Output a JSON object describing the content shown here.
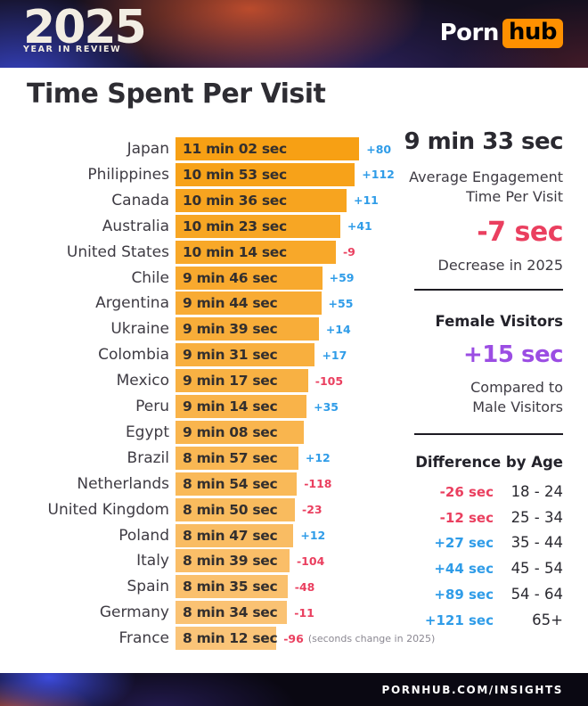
{
  "header": {
    "year": "2025",
    "tagline": "YEAR IN REVIEW",
    "brand_left": "Porn",
    "brand_right": "hub"
  },
  "page_title": "Time Spent Per Visit",
  "chart_data": {
    "type": "bar",
    "title": "Time Spent Per Visit",
    "orientation": "horizontal",
    "x_axis_visible": false,
    "bar_scale_seconds_range": [
      285,
      680
    ],
    "rows": [
      {
        "country": "Japan",
        "time": "11 min 02 sec",
        "seconds": 662,
        "change": "+80"
      },
      {
        "country": "Philippines",
        "time": "10 min 53 sec",
        "seconds": 653,
        "change": "+112"
      },
      {
        "country": "Canada",
        "time": "10 min 36 sec",
        "seconds": 636,
        "change": "+11"
      },
      {
        "country": "Australia",
        "time": "10 min 23 sec",
        "seconds": 623,
        "change": "+41"
      },
      {
        "country": "United States",
        "time": "10 min 14 sec",
        "seconds": 614,
        "change": "-9"
      },
      {
        "country": "Chile",
        "time": "9 min 46 sec",
        "seconds": 586,
        "change": "+59"
      },
      {
        "country": "Argentina",
        "time": "9 min 44 sec",
        "seconds": 584,
        "change": "+55"
      },
      {
        "country": "Ukraine",
        "time": "9 min 39 sec",
        "seconds": 579,
        "change": "+14"
      },
      {
        "country": "Colombia",
        "time": "9 min 31 sec",
        "seconds": 571,
        "change": "+17"
      },
      {
        "country": "Mexico",
        "time": "9 min 17 sec",
        "seconds": 557,
        "change": "-105"
      },
      {
        "country": "Peru",
        "time": "9 min 14 sec",
        "seconds": 554,
        "change": "+35"
      },
      {
        "country": "Egypt",
        "time": "9 min 08 sec",
        "seconds": 548,
        "change": ""
      },
      {
        "country": "Brazil",
        "time": "8 min 57 sec",
        "seconds": 537,
        "change": "+12"
      },
      {
        "country": "Netherlands",
        "time": "8 min 54 sec",
        "seconds": 534,
        "change": "-118"
      },
      {
        "country": "United Kingdom",
        "time": "8 min 50 sec",
        "seconds": 530,
        "change": "-23"
      },
      {
        "country": "Poland",
        "time": "8 min 47 sec",
        "seconds": 527,
        "change": "+12"
      },
      {
        "country": "Italy",
        "time": "8 min 39 sec",
        "seconds": 519,
        "change": "-104"
      },
      {
        "country": "Spain",
        "time": "8 min 35 sec",
        "seconds": 515,
        "change": "-48"
      },
      {
        "country": "Germany",
        "time": "8 min 34 sec",
        "seconds": 514,
        "change": "-11"
      },
      {
        "country": "France",
        "time": "8 min 12 sec",
        "seconds": 492,
        "change": "-96",
        "note": "(seconds change in 2025)"
      }
    ]
  },
  "sidebar": {
    "average": {
      "value": "9 min 33 sec",
      "label_line1": "Average Engagement",
      "label_line2": "Time Per Visit",
      "delta": "-7 sec",
      "delta_label": "Decrease in 2025"
    },
    "female": {
      "title": "Female Visitors",
      "delta": "+15 sec",
      "label_line1": "Compared to",
      "label_line2": "Male Visitors"
    },
    "age": {
      "title": "Difference by Age",
      "rows": [
        {
          "change": "-26 sec",
          "range": "18 - 24"
        },
        {
          "change": "-12 sec",
          "range": "25 - 34"
        },
        {
          "change": "+27 sec",
          "range": "35 - 44"
        },
        {
          "change": "+44 sec",
          "range": "45 - 54"
        },
        {
          "change": "+89 sec",
          "range": "54 - 64"
        },
        {
          "change": "+121 sec",
          "range": "65+"
        }
      ]
    }
  },
  "footer": {
    "url": "PORNHUB.COM/INSIGHTS"
  },
  "colors": {
    "bar_top": "#F7A014",
    "bar_bottom": "#FAC478",
    "positive": "#2F9CE8",
    "negative": "#EA3F5F",
    "purple": "#9B4DE3",
    "brand_orange": "#FF9000",
    "text_dark": "#2E2D33"
  }
}
